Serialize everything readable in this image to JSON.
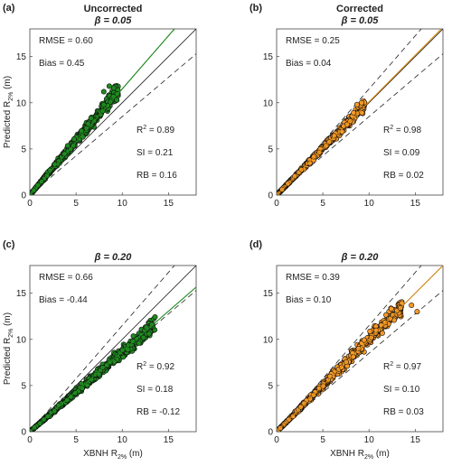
{
  "colors": {
    "uncorrected": "#1f8a1f",
    "corrected": "#f79a2a",
    "edge": "#111111",
    "axis": "#444444"
  },
  "chart_data": [
    {
      "type": "scatter",
      "panel": "(a)",
      "title": "Uncorrected",
      "beta_label": "β = 0.05",
      "xlabel": "",
      "ylabel": "Predicted R",
      "ylabel_sub": "2%",
      "ylabel_unit": " (m)",
      "xlim": [
        0,
        18
      ],
      "ylim": [
        0,
        18
      ],
      "xticks": [
        0,
        5,
        10,
        15
      ],
      "yticks": [
        0,
        5,
        10,
        15
      ],
      "stats_top": [
        "RMSE = 0.60",
        "Bias = 0.45"
      ],
      "r2": "0.89",
      "stats_bottom": [
        "SI = 0.21",
        "RB = 0.16"
      ],
      "marker_color": "#1f8a1f",
      "line_color": "#1f8a1f",
      "fit_slope": 1.15,
      "band": 0.15,
      "cloud": {
        "n": 600,
        "xmax": 9.5,
        "slope": 1.18,
        "spread": 0.12,
        "seed": 11,
        "outliers": [
          [
            8.6,
            11.8
          ],
          [
            9.1,
            11.6
          ],
          [
            8.0,
            11.2
          ],
          [
            9.4,
            10.3
          ]
        ]
      }
    },
    {
      "type": "scatter",
      "panel": "(b)",
      "title": "Corrected",
      "beta_label": "β = 0.05",
      "xlabel": "",
      "ylabel": "",
      "xlim": [
        0,
        18
      ],
      "ylim": [
        0,
        18
      ],
      "xticks": [
        0,
        5,
        10,
        15
      ],
      "yticks": [
        0,
        5,
        10,
        15
      ],
      "stats_top": [
        "RMSE = 0.25",
        "Bias = 0.04"
      ],
      "r2": "0.98",
      "stats_bottom": [
        "SI = 0.09",
        "RB = 0.02"
      ],
      "marker_color": "#f79a2a",
      "line_color": "#d98a10",
      "fit_slope": 1.01,
      "band": 0.15,
      "cloud": {
        "n": 600,
        "xmax": 9.5,
        "slope": 1.02,
        "spread": 0.09,
        "seed": 23,
        "outliers": [
          [
            9.2,
            10.0
          ],
          [
            8.7,
            9.8
          ]
        ]
      }
    },
    {
      "type": "scatter",
      "panel": "(c)",
      "title": "",
      "beta_label": "β = 0.20",
      "xlabel": "XBNH R",
      "xlabel_sub": "2%",
      "xlabel_unit": " (m)",
      "ylabel": "Predicted R",
      "ylabel_sub": "2%",
      "ylabel_unit": " (m)",
      "xlim": [
        0,
        18
      ],
      "ylim": [
        0,
        18
      ],
      "xticks": [
        0,
        5,
        10,
        15
      ],
      "yticks": [
        0,
        5,
        10,
        15
      ],
      "stats_top": [
        "RMSE = 0.66",
        "Bias = -0.44"
      ],
      "r2": "0.92",
      "stats_bottom": [
        "SI = 0.18",
        "RB = -0.12"
      ],
      "marker_color": "#1f8a1f",
      "line_color": "#1f8a1f",
      "fit_slope": 0.87,
      "band": 0.15,
      "cloud": {
        "n": 750,
        "xmax": 13.5,
        "slope": 0.86,
        "spread": 0.11,
        "seed": 37,
        "outliers": [
          [
            13.2,
            11.6
          ],
          [
            12.6,
            11.3
          ],
          [
            11.8,
            9.6
          ],
          [
            12.9,
            10.6
          ]
        ]
      }
    },
    {
      "type": "scatter",
      "panel": "(d)",
      "title": "",
      "beta_label": "β = 0.20",
      "xlabel": "XBNH R",
      "xlabel_sub": "2%",
      "xlabel_unit": " (m)",
      "ylabel": "",
      "xlim": [
        0,
        18
      ],
      "ylim": [
        0,
        18
      ],
      "xticks": [
        0,
        5,
        10,
        15
      ],
      "yticks": [
        0,
        5,
        10,
        15
      ],
      "stats_top": [
        "RMSE = 0.39",
        "Bias = 0.10"
      ],
      "r2": "0.97",
      "stats_bottom": [
        "SI = 0.10",
        "RB = 0.03"
      ],
      "marker_color": "#f79a2a",
      "line_color": "#d98a10",
      "fit_slope": 1.0,
      "band": 0.15,
      "cloud": {
        "n": 750,
        "xmax": 13.5,
        "slope": 1.0,
        "spread": 0.1,
        "seed": 51,
        "outliers": [
          [
            14.6,
            13.7
          ],
          [
            13.4,
            13.4
          ],
          [
            12.4,
            13.3
          ],
          [
            15.2,
            13.0
          ]
        ]
      }
    }
  ]
}
